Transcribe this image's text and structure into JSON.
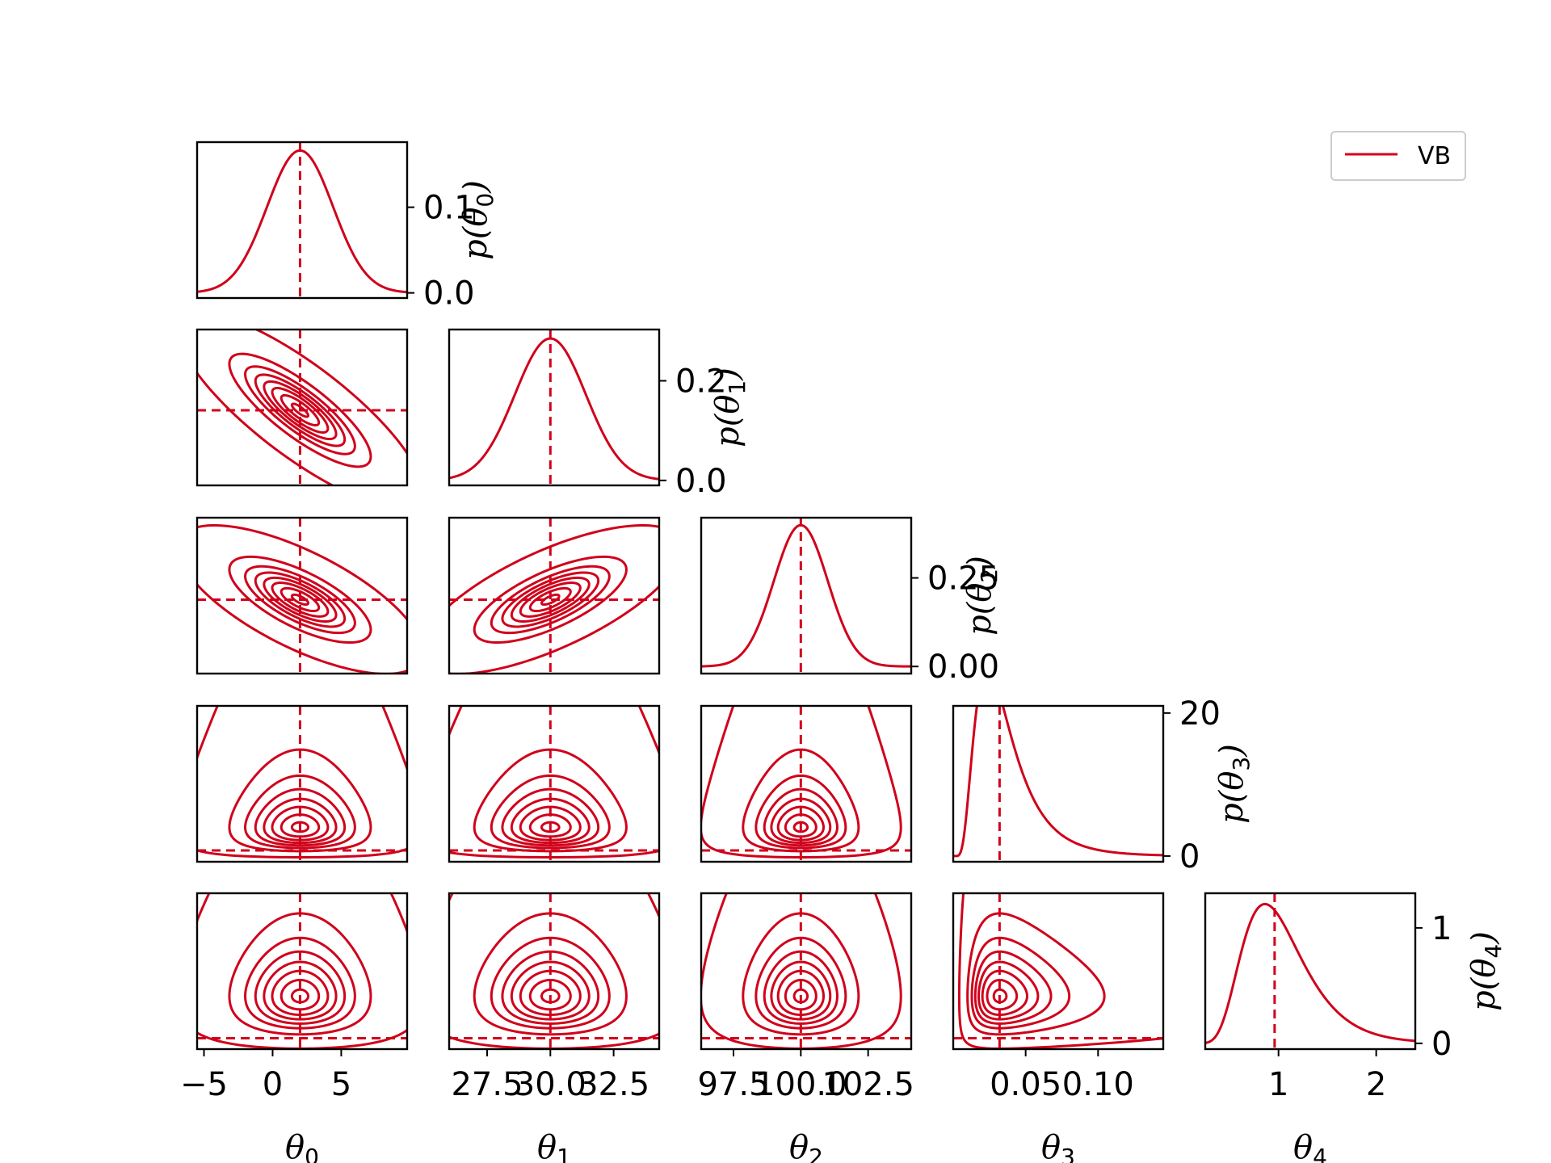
{
  "series_color": "#d0021b",
  "legend": {
    "label": "VB",
    "location": "top-right"
  },
  "chart_data": {
    "type": "corner",
    "params": [
      {
        "name": "θ",
        "sub": "0",
        "range": [
          -5.5,
          9.8
        ],
        "ticks": [
          -5,
          0,
          5
        ],
        "tick_labels": [
          "−5",
          "0",
          "5"
        ],
        "truth": 2.0,
        "marginal": {
          "dist": "normal",
          "mean": 2.0,
          "sd": 2.4,
          "y_ticks": [
            0.0,
            0.1
          ],
          "y_tick_labels": [
            "0.0",
            "0.1"
          ],
          "ylim": [
            -0.006,
            0.176
          ]
        }
      },
      {
        "name": "θ",
        "sub": "1",
        "range": [
          26.0,
          34.3
        ],
        "ticks": [
          27.5,
          30.0,
          32.5
        ],
        "tick_labels": [
          "27.5",
          "30.0",
          "32.5"
        ],
        "truth": 30.0,
        "marginal": {
          "dist": "normal",
          "mean": 30.0,
          "sd": 1.4,
          "y_ticks": [
            0.0,
            0.2
          ],
          "y_tick_labels": [
            "0.0",
            "0.2"
          ],
          "ylim": [
            -0.01,
            0.303
          ]
        }
      },
      {
        "name": "θ",
        "sub": "2",
        "range": [
          96.3,
          104.1
        ],
        "ticks": [
          97.5,
          100.0,
          102.5
        ],
        "tick_labels": [
          "97.5",
          "100.0",
          "102.5"
        ],
        "truth": 100.0,
        "marginal": {
          "dist": "normal",
          "mean": 100.0,
          "sd": 1.0,
          "y_ticks": [
            0.0,
            0.25
          ],
          "y_tick_labels": [
            "0.00",
            "0.25"
          ],
          "ylim": [
            -0.02,
            0.42
          ]
        }
      },
      {
        "name": "θ",
        "sub": "3",
        "range": [
          0.0,
          0.145
        ],
        "ticks": [
          0.05,
          0.1
        ],
        "tick_labels": [
          "0.05",
          "0.10"
        ],
        "truth": 0.032,
        "marginal": {
          "dist": "lognormal",
          "mu": -3.44,
          "sigma": 0.55,
          "y_ticks": [
            0,
            20
          ],
          "y_tick_labels": [
            "0",
            "20"
          ],
          "ylim": [
            -0.8,
            21.0
          ]
        }
      },
      {
        "name": "θ",
        "sub": "4",
        "range": [
          0.25,
          2.4
        ],
        "ticks": [
          1,
          2
        ],
        "tick_labels": [
          "1",
          "2"
        ],
        "truth": 0.96,
        "marginal": {
          "dist": "lognormal",
          "mu": -0.02,
          "sigma": 0.36,
          "y_ticks": [
            0,
            1
          ],
          "y_tick_labels": [
            "0",
            "1"
          ],
          "ylim": [
            -0.05,
            1.3
          ]
        }
      }
    ],
    "correlations": {
      "1,0": -0.82,
      "2,0": -0.7,
      "2,1": 0.7,
      "3,0": 0,
      "3,1": 0,
      "3,2": 0,
      "4,0": 0,
      "4,1": 0,
      "4,2": 0,
      "4,3": 0
    },
    "joint_y_truth": {
      "3": 0.0105,
      "4": 0.4
    },
    "contour_levels": [
      0.999,
      0.9,
      0.75,
      0.6,
      0.45,
      0.3,
      0.15,
      0.03
    ],
    "axis_labels": {
      "x": "θ",
      "y_prefix": "p"
    }
  }
}
